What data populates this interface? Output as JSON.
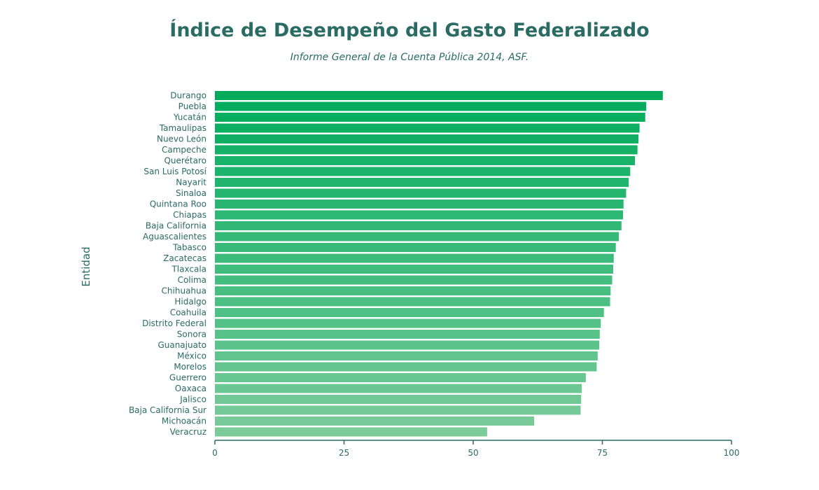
{
  "chart_data": {
    "type": "bar",
    "orientation": "horizontal",
    "title": "Índice de Desempeño del Gasto Federalizado",
    "subtitle": "Informe General de la Cuenta Pública 2014, ASF.",
    "ylabel": "Entidad",
    "xlabel": "",
    "xlim": [
      0,
      100
    ],
    "xticks": [
      0,
      25,
      50,
      75,
      100
    ],
    "grid": false,
    "legend": "none",
    "colors": {
      "high": "#00ac5c",
      "low": "#7ccc9a",
      "axis": "#2a6b63",
      "text": "#2a6b63"
    },
    "categories": [
      "Durango",
      "Puebla",
      "Yucatán",
      "Tamaulipas",
      "Nuevo León",
      "Campeche",
      "Querétaro",
      "San Luis Potosí",
      "Nayarit",
      "Sinaloa",
      "Quintana Roo",
      "Chiapas",
      "Baja California",
      "Aguascalientes",
      "Tabasco",
      "Zacatecas",
      "Tlaxcala",
      "Colima",
      "Chihuahua",
      "Hidalgo",
      "Coahuila",
      "Distrito Federal",
      "Sonora",
      "Guanajuato",
      "México",
      "Morelos",
      "Guerrero",
      "Oaxaca",
      "Jalisco",
      "Baja California Sur",
      "Michoacán",
      "Veracruz"
    ],
    "values": [
      86.7,
      83.5,
      83.3,
      82.2,
      82.0,
      81.8,
      81.3,
      80.4,
      80.1,
      79.6,
      79.1,
      79.0,
      78.7,
      78.2,
      77.6,
      77.2,
      77.1,
      76.9,
      76.6,
      76.5,
      75.3,
      74.7,
      74.5,
      74.4,
      74.1,
      73.9,
      71.8,
      71.0,
      70.9,
      70.8,
      61.8,
      52.7
    ]
  }
}
